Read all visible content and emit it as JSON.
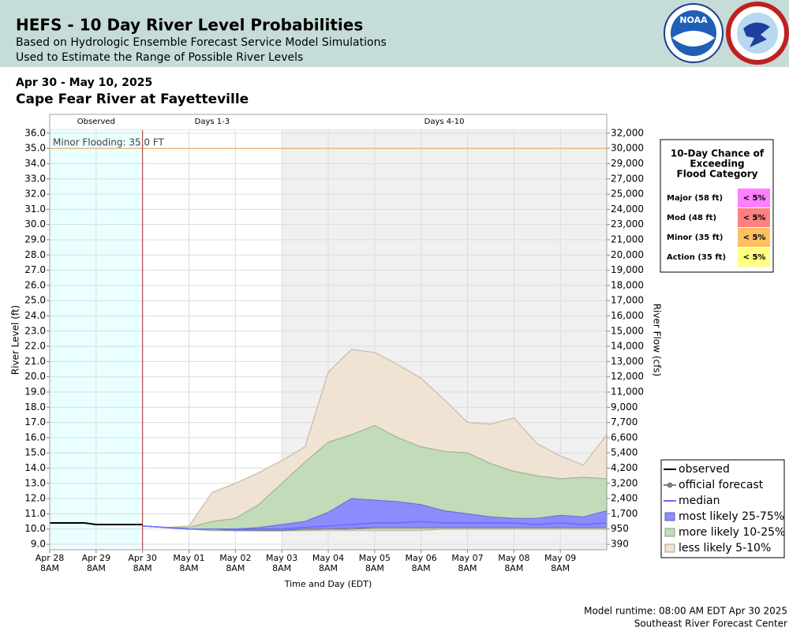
{
  "header": {
    "title": "HEFS - 10 Day River Level Probabilities",
    "subtitle": [
      "Based on Hydrologic Ensemble Forecast Service Model Simulations",
      "Used to Estimate the Range of Possible River Levels"
    ],
    "logo_text": "NOAA"
  },
  "date_range": "Apr 30 - May 10, 2025",
  "station": "Cape Fear River at Fayetteville",
  "chart_data": {
    "type": "band",
    "y_label": "River Level (ft)",
    "y2_label": "River Flow (cfs)",
    "x_label": "Time and Day (EDT)",
    "xlim": [
      "2025-04-28T08:00",
      "2025-05-10T08:00"
    ],
    "xticks": [
      {
        "value": "2025-04-28T08:00",
        "label": "Apr 28",
        "sublabel": "8AM"
      },
      {
        "value": "2025-04-29T08:00",
        "label": "Apr 29",
        "sublabel": "8AM"
      },
      {
        "value": "2025-04-30T08:00",
        "label": "Apr 30",
        "sublabel": "8AM"
      },
      {
        "value": "2025-05-01T08:00",
        "label": "May 01",
        "sublabel": "8AM"
      },
      {
        "value": "2025-05-02T08:00",
        "label": "May 02",
        "sublabel": "8AM"
      },
      {
        "value": "2025-05-03T08:00",
        "label": "May 03",
        "sublabel": "8AM"
      },
      {
        "value": "2025-05-04T08:00",
        "label": "May 04",
        "sublabel": "8AM"
      },
      {
        "value": "2025-05-05T08:00",
        "label": "May 05",
        "sublabel": "8AM"
      },
      {
        "value": "2025-05-06T08:00",
        "label": "May 06",
        "sublabel": "8AM"
      },
      {
        "value": "2025-05-07T08:00",
        "label": "May 07",
        "sublabel": "8AM"
      },
      {
        "value": "2025-05-08T08:00",
        "label": "May 08",
        "sublabel": "8AM"
      },
      {
        "value": "2025-05-09T08:00",
        "label": "May 09",
        "sublabel": "8AM"
      }
    ],
    "ylim": [
      8.64,
      36.2
    ],
    "yticks": [
      {
        "value": 9,
        "label": "9.0"
      },
      {
        "value": 10,
        "label": "10.0"
      },
      {
        "value": 11,
        "label": "11.0"
      },
      {
        "value": 12,
        "label": "12.0"
      },
      {
        "value": 13,
        "label": "13.0"
      },
      {
        "value": 14,
        "label": "14.0"
      },
      {
        "value": 15,
        "label": "15.0"
      },
      {
        "value": 16,
        "label": "16.0"
      },
      {
        "value": 17,
        "label": "17.0"
      },
      {
        "value": 18,
        "label": "18.0"
      },
      {
        "value": 19,
        "label": "19.0"
      },
      {
        "value": 20,
        "label": "20.0"
      },
      {
        "value": 21,
        "label": "21.0"
      },
      {
        "value": 22,
        "label": "22.0"
      },
      {
        "value": 23,
        "label": "23.0"
      },
      {
        "value": 24,
        "label": "24.0"
      },
      {
        "value": 25,
        "label": "25.0"
      },
      {
        "value": 26,
        "label": "26.0"
      },
      {
        "value": 27,
        "label": "27.0"
      },
      {
        "value": 28,
        "label": "28.0"
      },
      {
        "value": 29,
        "label": "29.0"
      },
      {
        "value": 30,
        "label": "30.0"
      },
      {
        "value": 31,
        "label": "31.0"
      },
      {
        "value": 32,
        "label": "32.0"
      },
      {
        "value": 33,
        "label": "33.0"
      },
      {
        "value": 34,
        "label": "34.0"
      },
      {
        "value": 35,
        "label": "35.0"
      },
      {
        "value": 36,
        "label": "36.0"
      }
    ],
    "y2ticks": [
      390,
      950,
      {
        "value": 1700,
        "label": "1,700"
      },
      {
        "value": 2400,
        "label": "2,400"
      },
      {
        "value": 3200,
        "label": "3,200"
      },
      {
        "value": 4200,
        "label": "4,200"
      },
      {
        "value": 5400,
        "label": "5,400"
      },
      {
        "value": 6600,
        "label": "6,600"
      },
      {
        "value": 7700,
        "label": "7,700"
      },
      {
        "value": 9000,
        "label": "9,000"
      },
      {
        "value": 11000,
        "label": "11,000"
      },
      {
        "value": 12000,
        "label": "12,000"
      },
      {
        "value": 13000,
        "label": "13,000"
      },
      {
        "value": 14000,
        "label": "14,000"
      },
      {
        "value": 15000,
        "label": "15,000"
      },
      {
        "value": 16000,
        "label": "16,000"
      },
      {
        "value": 17000,
        "label": "17,000"
      },
      {
        "value": 18000,
        "label": "18,000"
      },
      {
        "value": 19000,
        "label": "19,000"
      },
      {
        "value": 20000,
        "label": "20,000"
      },
      {
        "value": 21000,
        "label": "21,000"
      },
      {
        "value": 23000,
        "label": "23,000"
      },
      {
        "value": 24000,
        "label": "24,000"
      },
      {
        "value": 25000,
        "label": "25,000"
      },
      {
        "value": 27000,
        "label": "27,000"
      },
      {
        "value": 29000,
        "label": "29,000"
      },
      {
        "value": 30000,
        "label": "30,000"
      },
      {
        "value": 32000,
        "label": "32,000"
      }
    ],
    "grid": true,
    "periods": [
      {
        "label": "Observed",
        "start": "2025-04-28T08:00",
        "end": "2025-04-30T08:00",
        "color": "#eaffff"
      },
      {
        "label": "Days 1-3",
        "start": "2025-04-30T08:00",
        "end": "2025-05-03T08:00",
        "color": "#ffffff"
      },
      {
        "label": "Days 4-10",
        "start": "2025-05-03T08:00",
        "end": "2025-05-10T08:00",
        "color": "#f0f0f0"
      }
    ],
    "forecast_start": "2025-04-30T08:00",
    "flood_line": {
      "label": "Minor Flooding: 35.0 FT",
      "value": 35,
      "color": "#e8a860"
    },
    "x": [
      "2025-04-30T08:00",
      "2025-04-30T20:00",
      "2025-05-01T08:00",
      "2025-05-01T20:00",
      "2025-05-02T08:00",
      "2025-05-02T20:00",
      "2025-05-03T08:00",
      "2025-05-03T20:00",
      "2025-05-04T08:00",
      "2025-05-04T20:00",
      "2025-05-05T08:00",
      "2025-05-05T20:00",
      "2025-05-06T08:00",
      "2025-05-06T20:00",
      "2025-05-07T08:00",
      "2025-05-07T20:00",
      "2025-05-08T08:00",
      "2025-05-08T20:00",
      "2025-05-09T08:00",
      "2025-05-09T20:00",
      "2025-05-10T08:00"
    ],
    "series": [
      {
        "name": "observed",
        "color": "#000000",
        "kind": "line",
        "x": [
          "2025-04-28T08:00",
          "2025-04-28T14:00",
          "2025-04-28T20:00",
          "2025-04-29T02:00",
          "2025-04-29T08:00",
          "2025-04-29T14:00",
          "2025-04-29T20:00",
          "2025-04-30T02:00",
          "2025-04-30T08:00"
        ],
        "values": [
          10.4,
          10.4,
          10.4,
          10.4,
          10.3,
          10.3,
          10.3,
          10.3,
          10.3
        ]
      },
      {
        "name": "official forecast",
        "color": "#808080",
        "kind": "line",
        "values": [
          10.2,
          10.1,
          10.0,
          10.0,
          10.0,
          9.9,
          9.9,
          10.0,
          10.0,
          10.0,
          10.1,
          10.1,
          10.1,
          10.1,
          10.1,
          10.1,
          10.1,
          10.1,
          10.1,
          10.1,
          10.1
        ]
      },
      {
        "name": "median",
        "color": "#6a6aff",
        "kind": "line",
        "values": [
          10.2,
          10.1,
          10.0,
          10.0,
          10.0,
          10.0,
          10.0,
          10.1,
          10.2,
          10.3,
          10.4,
          10.4,
          10.5,
          10.4,
          10.4,
          10.4,
          10.4,
          10.3,
          10.4,
          10.3,
          10.4
        ]
      },
      {
        "name": "most likely 25-75%",
        "color": "#8c8cff",
        "kind": "band",
        "low": [
          10.2,
          10.1,
          10.0,
          10.0,
          9.9,
          9.9,
          9.9,
          10.0,
          10.0,
          10.1,
          10.1,
          10.1,
          10.1,
          10.1,
          10.1,
          10.1,
          10.1,
          10.1,
          10.1,
          10.1,
          10.1
        ],
        "high": [
          10.2,
          10.1,
          10.0,
          10.0,
          10.0,
          10.1,
          10.3,
          10.5,
          11.1,
          12.0,
          11.9,
          11.8,
          11.6,
          11.2,
          11.0,
          10.8,
          10.7,
          10.7,
          10.9,
          10.8,
          11.2
        ]
      },
      {
        "name": "more likely 10-25%",
        "color": "#c2dbb8",
        "kind": "band",
        "low": [
          10.2,
          10.1,
          10.0,
          9.9,
          9.9,
          9.9,
          9.9,
          9.9,
          10.0,
          10.0,
          10.0,
          10.0,
          10.0,
          10.0,
          10.0,
          10.0,
          10.0,
          10.0,
          10.0,
          10.0,
          10.0
        ],
        "high": [
          10.2,
          10.1,
          10.1,
          10.5,
          10.7,
          11.6,
          13.0,
          14.4,
          15.7,
          16.2,
          16.8,
          16.0,
          15.4,
          15.1,
          15.0,
          14.3,
          13.8,
          13.5,
          13.3,
          13.4,
          13.3
        ]
      },
      {
        "name": "less likely 5-10%",
        "color": "#f1e3d3",
        "kind": "band",
        "low": [
          10.2,
          10.1,
          10.0,
          9.9,
          9.9,
          9.9,
          9.9,
          9.9,
          9.9,
          9.9,
          9.9,
          9.9,
          9.9,
          10.0,
          10.0,
          10.0,
          10.0,
          10.0,
          10.0,
          10.0,
          10.0
        ],
        "high": [
          10.2,
          10.1,
          10.2,
          12.4,
          13.0,
          13.7,
          14.5,
          15.4,
          20.3,
          21.8,
          21.6,
          20.8,
          19.9,
          18.5,
          17.0,
          16.9,
          17.3,
          15.6,
          14.8,
          14.2,
          16.2
        ]
      }
    ],
    "legend": "lower right"
  },
  "exceedance": {
    "title": [
      "10-Day Chance of",
      "Exceeding",
      "Flood Category"
    ],
    "rows": [
      {
        "category": "Major (58 ft)",
        "chance": "< 5%",
        "color": "#ff80ff"
      },
      {
        "category": "Mod (48 ft)",
        "chance": "< 5%",
        "color": "#ff8080"
      },
      {
        "category": "Minor (35 ft)",
        "chance": "< 5%",
        "color": "#ffc060"
      },
      {
        "category": "Action (35 ft)",
        "chance": "< 5%",
        "color": "#ffff80"
      }
    ]
  },
  "footer": [
    "Model runtime: 08:00 AM EDT Apr 30 2025",
    "Southeast River Forecast Center"
  ]
}
